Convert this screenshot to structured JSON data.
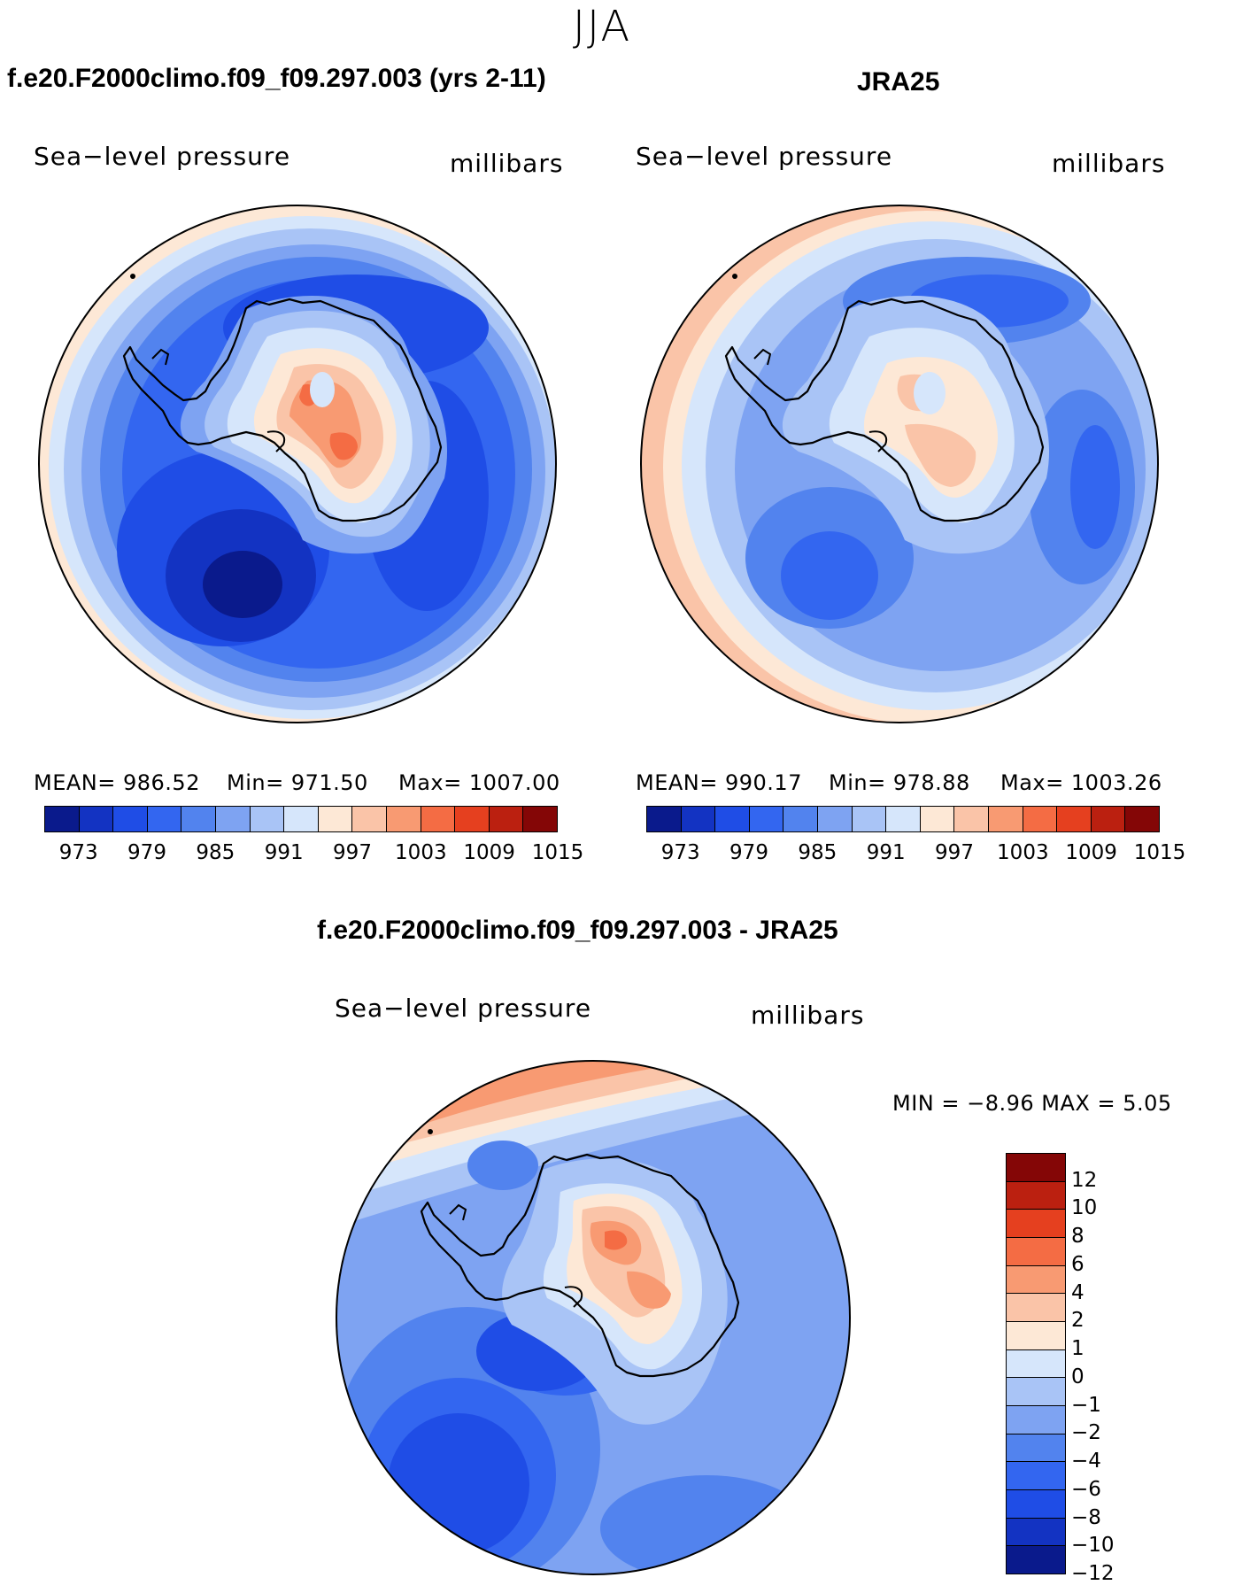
{
  "season": "JJA",
  "panels": [
    {
      "title": "f.e20.F2000climo.f09_f09.297.003 (yrs 2-11)",
      "variable": "Sea−level pressure",
      "units": "millibars",
      "mean": "MEAN= 986.52",
      "min": "Min= 971.50",
      "max": "Max= 1007.00"
    },
    {
      "title": "JRA25",
      "variable": "Sea−level pressure",
      "units": "millibars",
      "mean": "MEAN= 990.17",
      "min": "Min= 978.88",
      "max": "Max= 1003.26"
    },
    {
      "title": "f.e20.F2000climo.f09_f09.297.003 - JRA25",
      "variable": "Sea−level pressure",
      "units": "millibars",
      "minmax": "MIN =   −8.96  MAX =     5.05"
    }
  ],
  "abs_colorbar": {
    "colors": [
      "#0a1a8c",
      "#1333c2",
      "#1f4de6",
      "#3366f0",
      "#5283ee",
      "#7ea3f2",
      "#a9c4f6",
      "#d6e6fb",
      "#fde8d6",
      "#fac4a8",
      "#f89a72",
      "#f46c44",
      "#e5401f",
      "#bb2010",
      "#840606"
    ],
    "tick_labels": [
      "973",
      "979",
      "985",
      "991",
      "997",
      "1003",
      "1009",
      "1015"
    ]
  },
  "diff_colorbar": {
    "colors": [
      "#840606",
      "#bb2010",
      "#e5401f",
      "#f46c44",
      "#f89a72",
      "#fac4a8",
      "#fde8d6",
      "#d6e6fb",
      "#a9c4f6",
      "#7ea3f2",
      "#5283ee",
      "#3366f0",
      "#1f4de6",
      "#1333c2",
      "#0a1a8c"
    ],
    "tick_labels": [
      "12",
      "10",
      "8",
      "6",
      "4",
      "2",
      "1",
      "0",
      "−1",
      "−2",
      "−4",
      "−6",
      "−8",
      "−10",
      "−12"
    ]
  }
}
